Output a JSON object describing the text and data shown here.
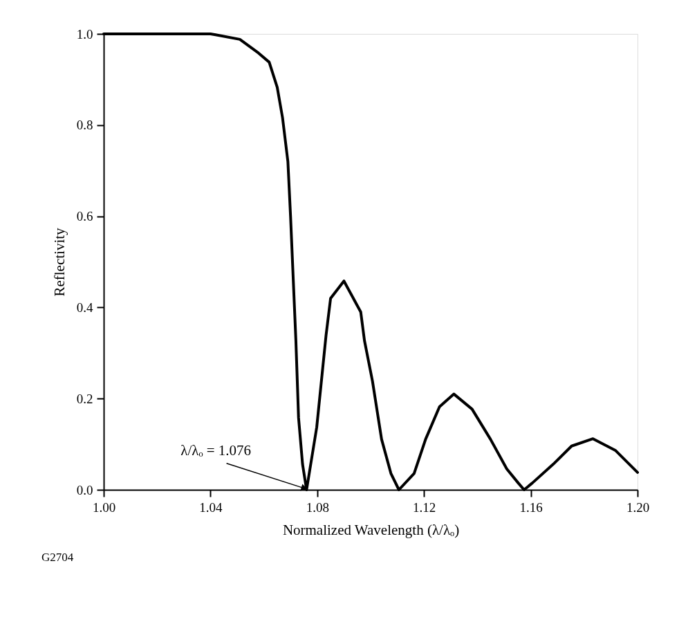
{
  "chart_data": {
    "type": "line",
    "xlabel": "Normalized Wavelength (λ/λₒ)",
    "ylabel": "Reflectivity",
    "x": [
      1.0,
      1.02,
      1.04,
      1.0419,
      1.051,
      1.058,
      1.062,
      1.065,
      1.067,
      1.069,
      1.07,
      1.071,
      1.072,
      1.073,
      1.0745,
      1.076,
      1.0798,
      1.0833,
      1.085,
      1.09,
      1.0963,
      1.0977,
      1.1007,
      1.1041,
      1.1076,
      1.1106,
      1.1163,
      1.1206,
      1.1258,
      1.1312,
      1.138,
      1.1449,
      1.151,
      1.1553,
      1.1575,
      1.1606,
      1.1684,
      1.1753,
      1.1833,
      1.1918,
      1.2
    ],
    "series": [
      {
        "color": "#000000",
        "values": [
          1.0,
          1.0,
          1.0,
          0.998,
          0.988,
          0.958,
          0.938,
          0.883,
          0.816,
          0.72,
          0.6,
          0.463,
          0.327,
          0.158,
          0.056,
          0.0,
          0.137,
          0.339,
          0.42,
          0.458,
          0.39,
          0.327,
          0.238,
          0.111,
          0.036,
          0.0,
          0.036,
          0.111,
          0.182,
          0.21,
          0.177,
          0.111,
          0.046,
          0.015,
          0.0,
          0.015,
          0.056,
          0.096,
          0.112,
          0.086,
          0.038
        ]
      }
    ],
    "xlim": [
      1.0,
      1.2
    ],
    "xticks": [
      {
        "value": 1.0,
        "label": "1.00"
      },
      1.04,
      1.08,
      1.12,
      1.16,
      {
        "value": 1.2,
        "label": "1.20"
      }
    ],
    "ylim": [
      0.0,
      1.0
    ],
    "yticks": [
      {
        "value": 0,
        "label": "0.0"
      },
      0.2,
      0.4,
      0.6,
      0.8,
      {
        "value": 1,
        "label": "1.0"
      }
    ],
    "grid": false,
    "line_style": "solid",
    "marker": "none",
    "annotations": [
      {
        "text": "λ/λₒ = 1.076",
        "x": 1.076,
        "y": 0.0
      },
      "G2704"
    ]
  }
}
